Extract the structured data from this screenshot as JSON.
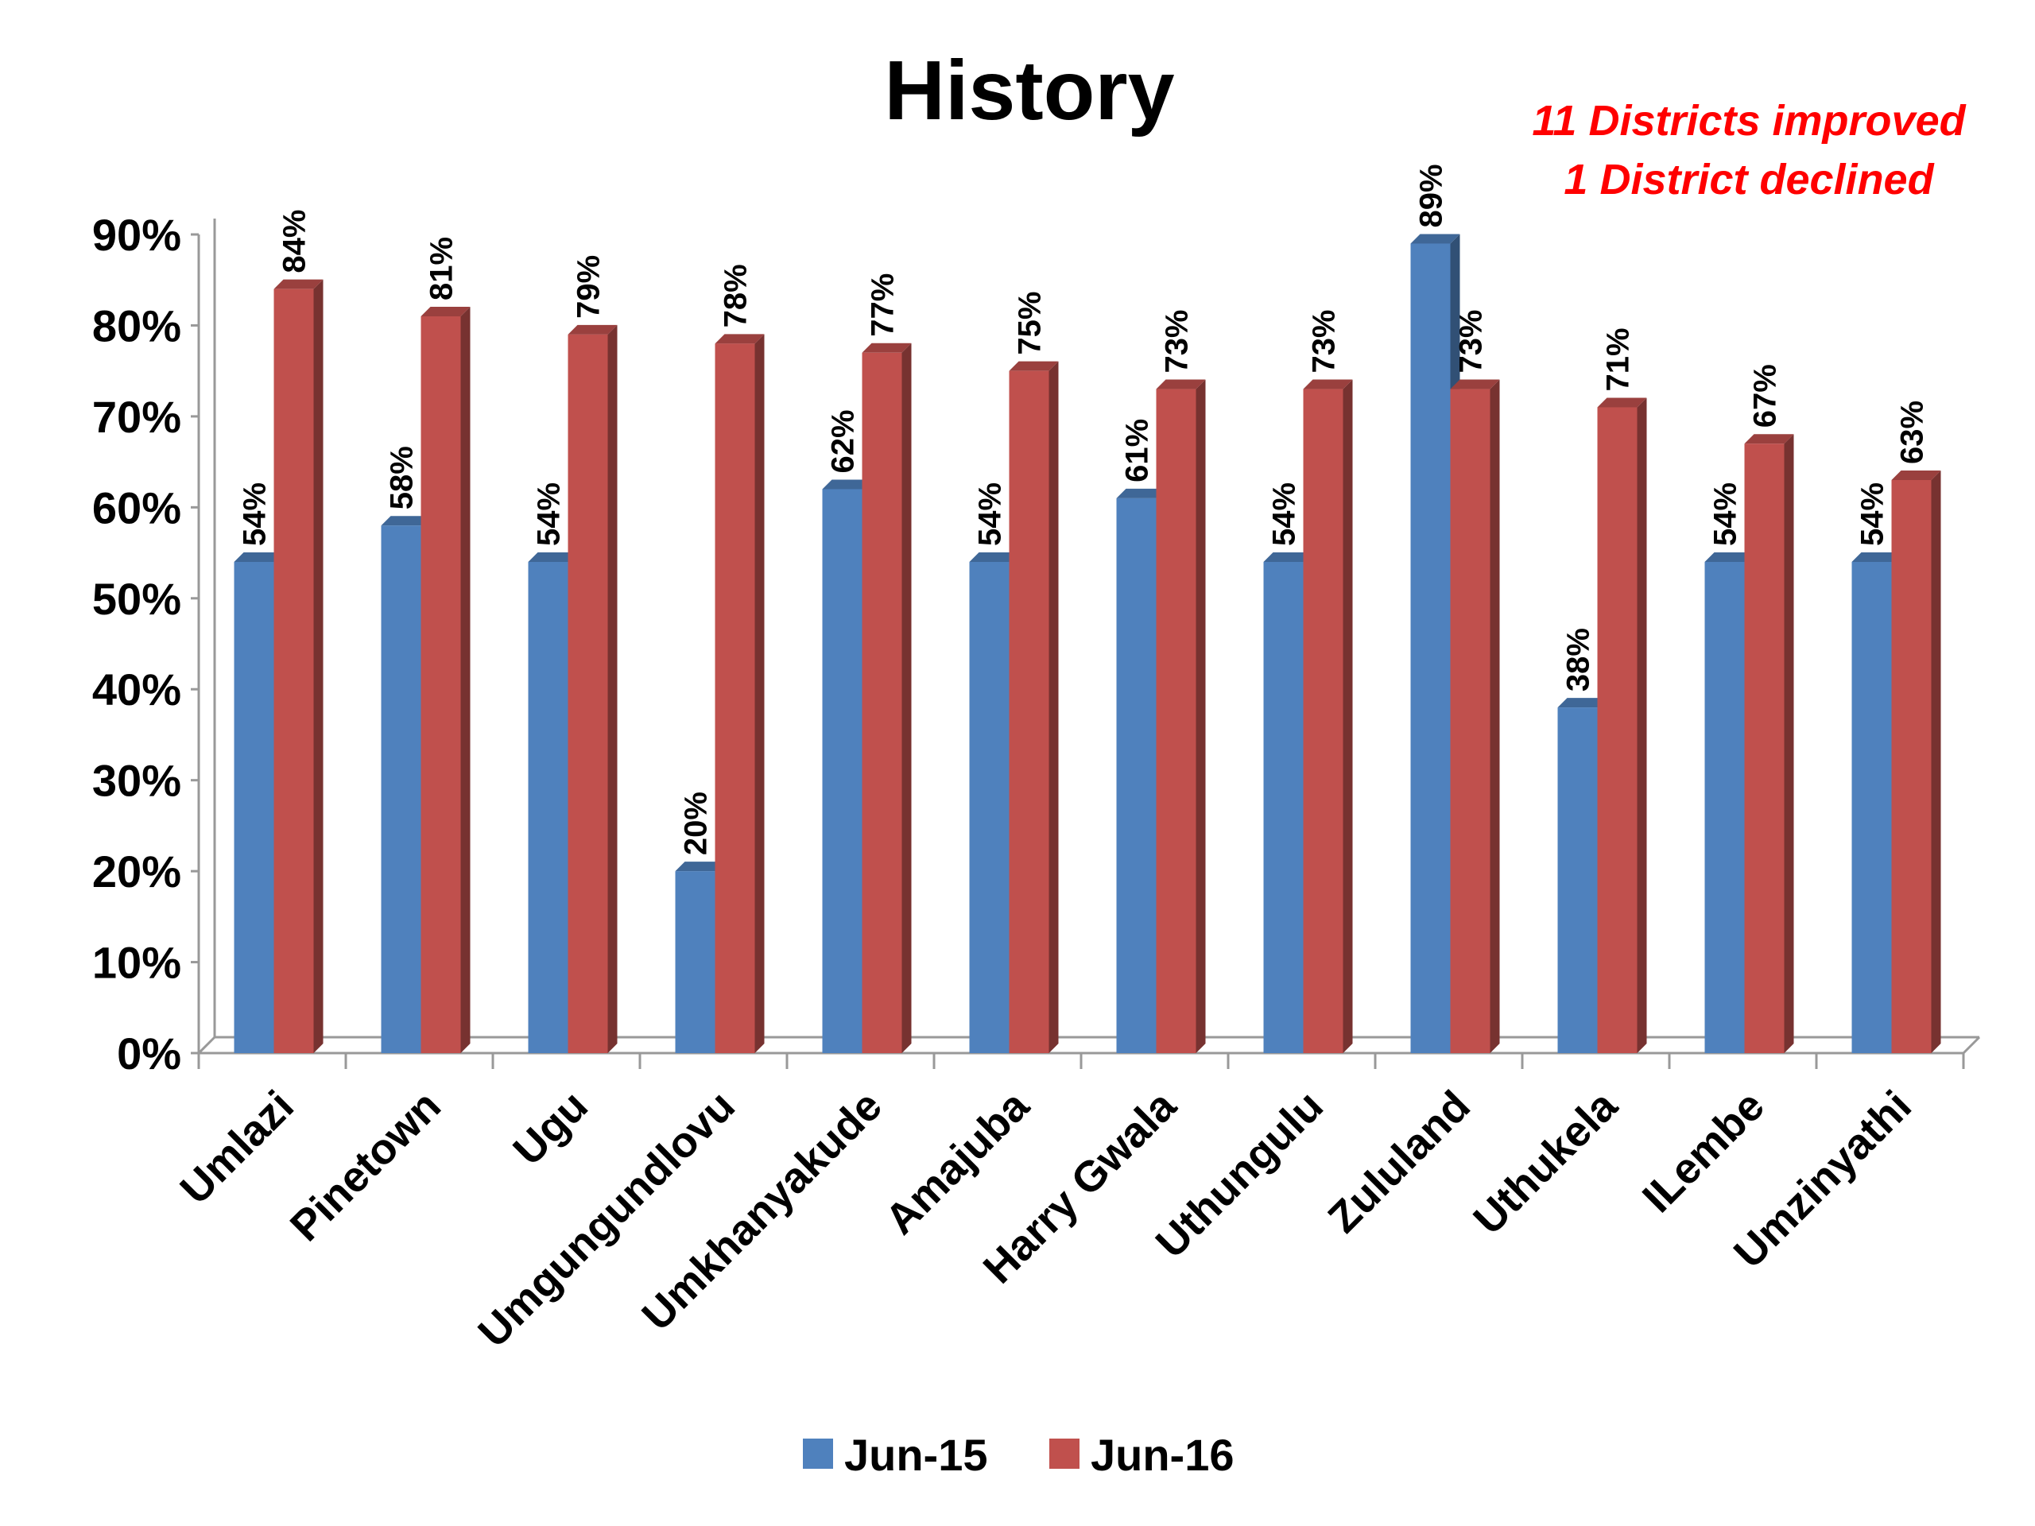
{
  "chart_data": {
    "type": "bar",
    "title": "History",
    "annotations": [
      "11 Districts improved",
      "1 District declined"
    ],
    "categories": [
      "Umlazi",
      "Pinetown",
      "Ugu",
      "Umgungundlovu",
      "Umkhanyakude",
      "Amajuba",
      "Harry Gwala",
      "Uthungulu",
      "Zululand",
      "Uthukela",
      "ILembe",
      "Umzinyathi"
    ],
    "series": [
      {
        "name": "Jun-15",
        "color": "#4f81bd",
        "values": [
          54,
          58,
          54,
          20,
          62,
          54,
          61,
          54,
          89,
          38,
          54,
          54
        ]
      },
      {
        "name": "Jun-16",
        "color": "#c0504d",
        "values": [
          84,
          81,
          79,
          78,
          77,
          75,
          73,
          73,
          73,
          71,
          67,
          63
        ]
      }
    ],
    "ylim": [
      0,
      90
    ],
    "yticks": [
      "0%",
      "10%",
      "20%",
      "30%",
      "40%",
      "50%",
      "60%",
      "70%",
      "80%",
      "90%"
    ],
    "value_suffix": "%",
    "legend_position": "bottom",
    "grid": false
  }
}
